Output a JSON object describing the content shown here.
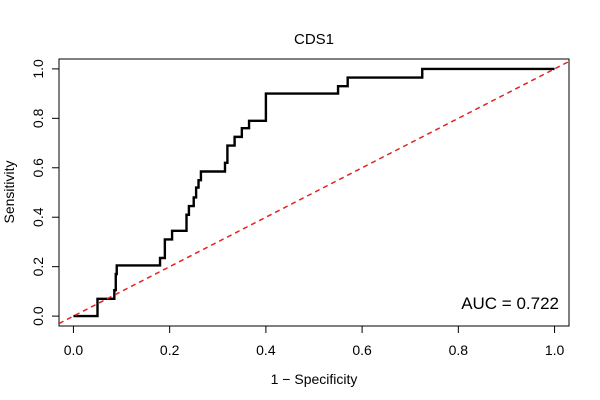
{
  "chart_data": {
    "type": "line",
    "title": "CDS1",
    "xlabel": "1 − Specificity",
    "ylabel": "Sensitivity",
    "xlim": [
      -0.03,
      1.03
    ],
    "ylim": [
      -0.04,
      1.04
    ],
    "x_ticks": [
      0.0,
      0.2,
      0.4,
      0.6,
      0.8,
      1.0
    ],
    "x_tick_labels": [
      "0.0",
      "0.2",
      "0.4",
      "0.6",
      "0.8",
      "1.0"
    ],
    "y_ticks": [
      0.0,
      0.2,
      0.4,
      0.6,
      0.8,
      1.0
    ],
    "y_tick_labels": [
      "0.0",
      "0.2",
      "0.4",
      "0.6",
      "0.8",
      "1.0"
    ],
    "grid": false,
    "annotation": "AUC = 0.722",
    "series": [
      {
        "kind": "roc",
        "color": "#000000",
        "x": [
          0.0,
          0.05,
          0.05,
          0.085,
          0.085,
          0.088,
          0.088,
          0.09,
          0.09,
          0.18,
          0.18,
          0.19,
          0.19,
          0.205,
          0.205,
          0.235,
          0.235,
          0.24,
          0.24,
          0.25,
          0.25,
          0.255,
          0.255,
          0.26,
          0.26,
          0.265,
          0.265,
          0.315,
          0.315,
          0.32,
          0.32,
          0.335,
          0.335,
          0.35,
          0.35,
          0.365,
          0.365,
          0.4,
          0.4,
          0.55,
          0.55,
          0.57,
          0.57,
          0.725,
          0.725,
          1.0
        ],
        "y": [
          0.0,
          0.0,
          0.07,
          0.07,
          0.105,
          0.105,
          0.17,
          0.17,
          0.205,
          0.205,
          0.235,
          0.235,
          0.31,
          0.31,
          0.345,
          0.345,
          0.41,
          0.41,
          0.445,
          0.445,
          0.48,
          0.48,
          0.52,
          0.52,
          0.55,
          0.55,
          0.585,
          0.585,
          0.62,
          0.62,
          0.69,
          0.69,
          0.725,
          0.725,
          0.76,
          0.76,
          0.79,
          0.79,
          0.9,
          0.9,
          0.93,
          0.93,
          0.965,
          0.965,
          1.0,
          1.0
        ]
      },
      {
        "kind": "reference",
        "color": "#e8201c",
        "dashed": true,
        "x": [
          0.0,
          1.0
        ],
        "y": [
          0.0,
          1.0
        ]
      }
    ]
  }
}
